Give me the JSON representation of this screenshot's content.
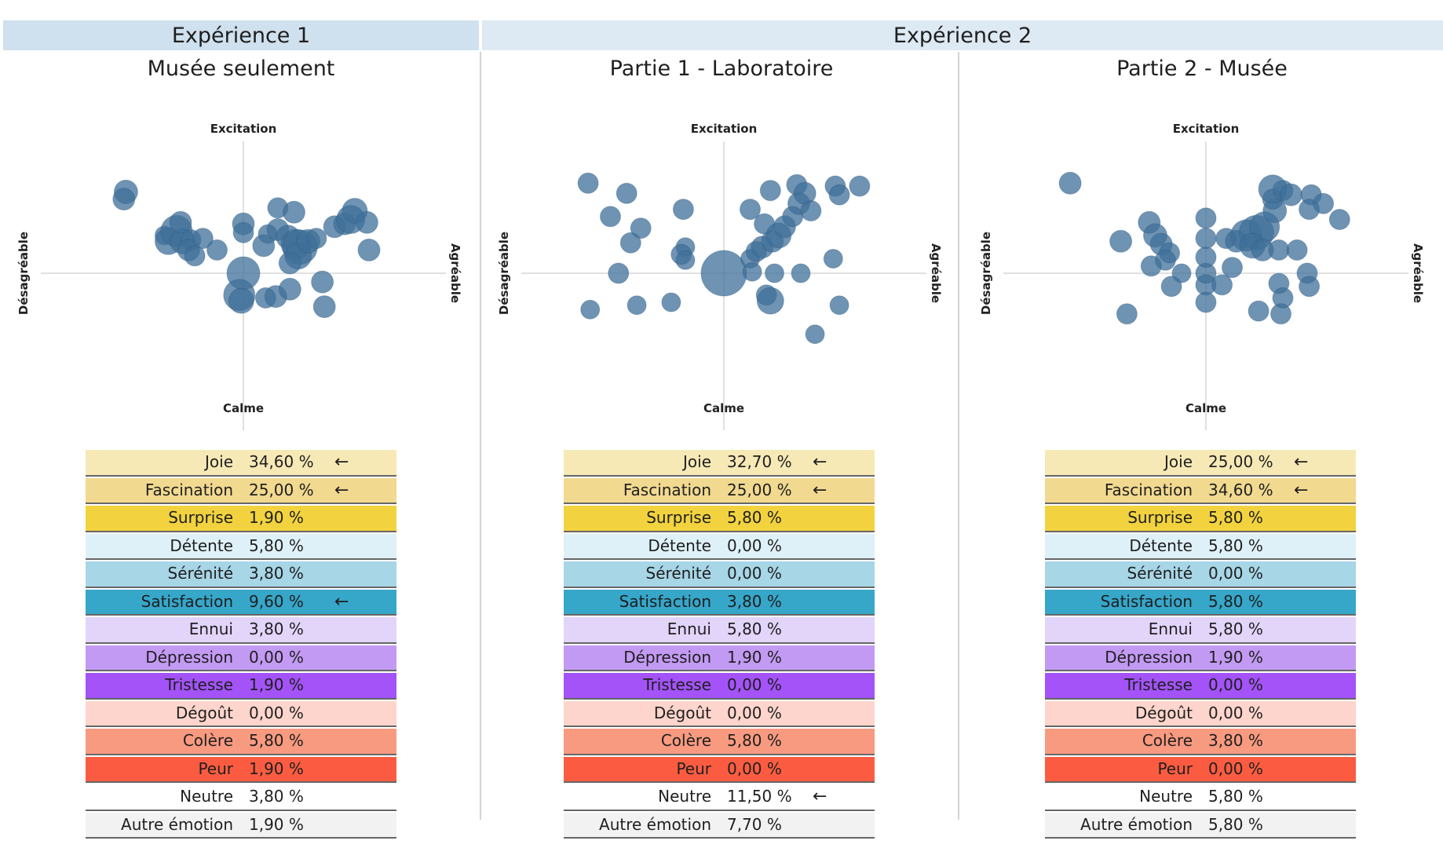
{
  "headers": {
    "exp1": "Expérience 1",
    "exp2": "Expérience 2"
  },
  "subtitles": [
    "Musée seulement",
    "Partie 1 - Laboratoire",
    "Partie 2 - Musée"
  ],
  "colors": {
    "bubble": "#3f6f98",
    "Joie": "#f7e9b6",
    "Fascination": "#f1d98f",
    "Surprise": "#f2d33f",
    "Détente": "#dff1f8",
    "Sérénité": "#a7d6e6",
    "Satisfaction": "#36a6c9",
    "Ennui": "#e3d4fa",
    "Dépression": "#c39af3",
    "Tristesse": "#a353f7",
    "Dégoût": "#fdd5cc",
    "Colère": "#f89a80",
    "Peur": "#fb5c41",
    "Neutre": "#ffffff",
    "Autre émotion": "#f2f2f2"
  },
  "chart_data": [
    {
      "type": "scatter",
      "title": "Musée seulement",
      "axes": {
        "top": "Excitation",
        "bottom": "Calme",
        "left": "Désagréable",
        "right": "Agréable"
      },
      "xlim": [
        -1,
        1
      ],
      "ylim": [
        -1,
        1
      ],
      "points": [
        {
          "x": -0.58,
          "y": 0.56,
          "r": 15
        },
        {
          "x": -0.59,
          "y": 0.51,
          "r": 14
        },
        {
          "x": -0.39,
          "y": 0.26,
          "r": 12
        },
        {
          "x": -0.37,
          "y": 0.22,
          "r": 17
        },
        {
          "x": -0.33,
          "y": 0.29,
          "r": 20
        },
        {
          "x": -0.3,
          "y": 0.22,
          "r": 16
        },
        {
          "x": -0.31,
          "y": 0.35,
          "r": 14
        },
        {
          "x": -0.26,
          "y": 0.23,
          "r": 13
        },
        {
          "x": -0.27,
          "y": 0.16,
          "r": 14
        },
        {
          "x": -0.24,
          "y": 0.12,
          "r": 13
        },
        {
          "x": -0.2,
          "y": 0.24,
          "r": 13
        },
        {
          "x": -0.13,
          "y": 0.16,
          "r": 13
        },
        {
          "x": 0.0,
          "y": 0.34,
          "r": 14
        },
        {
          "x": 0.0,
          "y": 0.28,
          "r": 13
        },
        {
          "x": 0.17,
          "y": 0.45,
          "r": 13
        },
        {
          "x": 0.25,
          "y": 0.42,
          "r": 14
        },
        {
          "x": 0.17,
          "y": 0.3,
          "r": 14
        },
        {
          "x": 0.12,
          "y": 0.27,
          "r": 12
        },
        {
          "x": 0.1,
          "y": 0.19,
          "r": 14
        },
        {
          "x": 0.22,
          "y": 0.25,
          "r": 15
        },
        {
          "x": 0.26,
          "y": 0.2,
          "r": 19
        },
        {
          "x": 0.28,
          "y": 0.18,
          "r": 22
        },
        {
          "x": 0.27,
          "y": 0.12,
          "r": 17
        },
        {
          "x": 0.32,
          "y": 0.22,
          "r": 15
        },
        {
          "x": 0.23,
          "y": 0.07,
          "r": 14
        },
        {
          "x": 0.36,
          "y": 0.24,
          "r": 13
        },
        {
          "x": 0.45,
          "y": 0.32,
          "r": 14
        },
        {
          "x": 0.5,
          "y": 0.34,
          "r": 14
        },
        {
          "x": 0.53,
          "y": 0.37,
          "r": 18
        },
        {
          "x": 0.55,
          "y": 0.43,
          "r": 16
        },
        {
          "x": 0.61,
          "y": 0.35,
          "r": 14
        },
        {
          "x": 0.62,
          "y": 0.16,
          "r": 14
        },
        {
          "x": 0.0,
          "y": 0.0,
          "r": 21
        },
        {
          "x": -0.02,
          "y": -0.15,
          "r": 20
        },
        {
          "x": -0.01,
          "y": -0.19,
          "r": 16
        },
        {
          "x": 0.11,
          "y": -0.17,
          "r": 13
        },
        {
          "x": 0.16,
          "y": -0.16,
          "r": 14
        },
        {
          "x": 0.23,
          "y": -0.11,
          "r": 14
        },
        {
          "x": 0.39,
          "y": -0.06,
          "r": 14
        },
        {
          "x": 0.4,
          "y": -0.23,
          "r": 14
        }
      ]
    },
    {
      "type": "scatter",
      "title": "Partie 1 - Laboratoire",
      "axes": {
        "top": "Excitation",
        "bottom": "Calme",
        "left": "Désagréable",
        "right": "Agréable"
      },
      "xlim": [
        -1,
        1
      ],
      "ylim": [
        -1,
        1
      ],
      "points": [
        {
          "x": -0.67,
          "y": 0.62,
          "r": 13
        },
        {
          "x": -0.48,
          "y": 0.55,
          "r": 13
        },
        {
          "x": -0.56,
          "y": 0.39,
          "r": 13
        },
        {
          "x": -0.41,
          "y": 0.31,
          "r": 13
        },
        {
          "x": -0.46,
          "y": 0.21,
          "r": 13
        },
        {
          "x": -0.2,
          "y": 0.44,
          "r": 13
        },
        {
          "x": -0.19,
          "y": 0.18,
          "r": 12
        },
        {
          "x": -0.21,
          "y": 0.13,
          "r": 13
        },
        {
          "x": -0.19,
          "y": 0.09,
          "r": 12
        },
        {
          "x": -0.52,
          "y": 0.0,
          "r": 13
        },
        {
          "x": 0.0,
          "y": 0.0,
          "r": 29
        },
        {
          "x": 0.13,
          "y": 0.1,
          "r": 12
        },
        {
          "x": 0.16,
          "y": 0.15,
          "r": 13
        },
        {
          "x": 0.19,
          "y": 0.18,
          "r": 14
        },
        {
          "x": 0.24,
          "y": 0.22,
          "r": 14
        },
        {
          "x": 0.27,
          "y": 0.26,
          "r": 16
        },
        {
          "x": 0.3,
          "y": 0.32,
          "r": 14
        },
        {
          "x": 0.2,
          "y": 0.34,
          "r": 13
        },
        {
          "x": 0.13,
          "y": 0.44,
          "r": 13
        },
        {
          "x": 0.23,
          "y": 0.57,
          "r": 13
        },
        {
          "x": 0.34,
          "y": 0.39,
          "r": 13
        },
        {
          "x": 0.37,
          "y": 0.48,
          "r": 14
        },
        {
          "x": 0.36,
          "y": 0.61,
          "r": 13
        },
        {
          "x": 0.4,
          "y": 0.55,
          "r": 14
        },
        {
          "x": 0.43,
          "y": 0.43,
          "r": 13
        },
        {
          "x": 0.55,
          "y": 0.6,
          "r": 13
        },
        {
          "x": 0.57,
          "y": 0.54,
          "r": 13
        },
        {
          "x": 0.67,
          "y": 0.6,
          "r": 13
        },
        {
          "x": 0.54,
          "y": 0.1,
          "r": 12
        },
        {
          "x": 0.38,
          "y": 0.0,
          "r": 12
        },
        {
          "x": 0.25,
          "y": 0.0,
          "r": 12
        },
        {
          "x": 0.14,
          "y": 0.01,
          "r": 12
        },
        {
          "x": 0.21,
          "y": -0.15,
          "r": 13
        },
        {
          "x": 0.23,
          "y": -0.19,
          "r": 17
        },
        {
          "x": 0.57,
          "y": -0.22,
          "r": 12
        },
        {
          "x": 0.45,
          "y": -0.42,
          "r": 12
        },
        {
          "x": -0.26,
          "y": -0.2,
          "r": 12
        },
        {
          "x": -0.43,
          "y": -0.22,
          "r": 12
        },
        {
          "x": -0.66,
          "y": -0.25,
          "r": 12
        }
      ]
    },
    {
      "type": "scatter",
      "title": "Partie 2 - Musée",
      "axes": {
        "top": "Excitation",
        "bottom": "Calme",
        "left": "Désagréable",
        "right": "Agréable"
      },
      "xlim": [
        -1,
        1
      ],
      "ylim": [
        -1,
        1
      ],
      "points": [
        {
          "x": -0.67,
          "y": 0.62,
          "r": 14
        },
        {
          "x": -0.28,
          "y": 0.35,
          "r": 14
        },
        {
          "x": -0.42,
          "y": 0.22,
          "r": 14
        },
        {
          "x": -0.25,
          "y": 0.26,
          "r": 15
        },
        {
          "x": -0.22,
          "y": 0.2,
          "r": 14
        },
        {
          "x": -0.18,
          "y": 0.14,
          "r": 13
        },
        {
          "x": -0.2,
          "y": 0.09,
          "r": 13
        },
        {
          "x": -0.27,
          "y": 0.05,
          "r": 13
        },
        {
          "x": -0.12,
          "y": 0.0,
          "r": 12
        },
        {
          "x": -0.17,
          "y": -0.09,
          "r": 13
        },
        {
          "x": 0.0,
          "y": 0.0,
          "r": 13
        },
        {
          "x": 0.0,
          "y": 0.11,
          "r": 13
        },
        {
          "x": 0.0,
          "y": 0.24,
          "r": 13
        },
        {
          "x": 0.0,
          "y": 0.38,
          "r": 13
        },
        {
          "x": 0.0,
          "y": -0.08,
          "r": 13
        },
        {
          "x": 0.0,
          "y": -0.2,
          "r": 13
        },
        {
          "x": 0.08,
          "y": -0.08,
          "r": 13
        },
        {
          "x": 0.13,
          "y": 0.04,
          "r": 13
        },
        {
          "x": 0.1,
          "y": 0.24,
          "r": 13
        },
        {
          "x": 0.15,
          "y": 0.22,
          "r": 14
        },
        {
          "x": 0.2,
          "y": 0.26,
          "r": 20
        },
        {
          "x": 0.25,
          "y": 0.28,
          "r": 22
        },
        {
          "x": 0.29,
          "y": 0.32,
          "r": 19
        },
        {
          "x": 0.23,
          "y": 0.19,
          "r": 16
        },
        {
          "x": 0.28,
          "y": 0.16,
          "r": 14
        },
        {
          "x": 0.34,
          "y": 0.43,
          "r": 15
        },
        {
          "x": 0.33,
          "y": 0.51,
          "r": 13
        },
        {
          "x": 0.38,
          "y": 0.57,
          "r": 13
        },
        {
          "x": 0.33,
          "y": 0.58,
          "r": 18
        },
        {
          "x": 0.42,
          "y": 0.54,
          "r": 14
        },
        {
          "x": 0.52,
          "y": 0.54,
          "r": 13
        },
        {
          "x": 0.51,
          "y": 0.44,
          "r": 13
        },
        {
          "x": 0.58,
          "y": 0.48,
          "r": 13
        },
        {
          "x": 0.66,
          "y": 0.37,
          "r": 13
        },
        {
          "x": 0.36,
          "y": 0.16,
          "r": 13
        },
        {
          "x": 0.45,
          "y": 0.16,
          "r": 13
        },
        {
          "x": 0.5,
          "y": 0.0,
          "r": 13
        },
        {
          "x": 0.36,
          "y": -0.07,
          "r": 13
        },
        {
          "x": 0.38,
          "y": -0.17,
          "r": 13
        },
        {
          "x": 0.51,
          "y": -0.09,
          "r": 13
        },
        {
          "x": -0.39,
          "y": -0.28,
          "r": 13
        },
        {
          "x": 0.26,
          "y": -0.26,
          "r": 13
        },
        {
          "x": 0.37,
          "y": -0.28,
          "r": 13
        }
      ]
    }
  ],
  "tables": [
    {
      "rows": [
        {
          "name": "Joie",
          "value": "34,60 %",
          "arrow": "←"
        },
        {
          "name": "Fascination",
          "value": "25,00 %",
          "arrow": "←"
        },
        {
          "name": "Surprise",
          "value": "1,90 %",
          "arrow": ""
        },
        {
          "name": "Détente",
          "value": "5,80 %",
          "arrow": ""
        },
        {
          "name": "Sérénité",
          "value": "3,80 %",
          "arrow": ""
        },
        {
          "name": "Satisfaction",
          "value": "9,60 %",
          "arrow": "←"
        },
        {
          "name": "Ennui",
          "value": "3,80 %",
          "arrow": ""
        },
        {
          "name": "Dépression",
          "value": "0,00 %",
          "arrow": ""
        },
        {
          "name": "Tristesse",
          "value": "1,90 %",
          "arrow": ""
        },
        {
          "name": "Dégoût",
          "value": "0,00 %",
          "arrow": ""
        },
        {
          "name": "Colère",
          "value": "5,80 %",
          "arrow": ""
        },
        {
          "name": "Peur",
          "value": "1,90 %",
          "arrow": ""
        },
        {
          "name": "Neutre",
          "value": "3,80 %",
          "arrow": ""
        },
        {
          "name": "Autre émotion",
          "value": "1,90 %",
          "arrow": ""
        }
      ]
    },
    {
      "rows": [
        {
          "name": "Joie",
          "value": "32,70 %",
          "arrow": "←"
        },
        {
          "name": "Fascination",
          "value": "25,00 %",
          "arrow": "←"
        },
        {
          "name": "Surprise",
          "value": "5,80 %",
          "arrow": ""
        },
        {
          "name": "Détente",
          "value": "0,00 %",
          "arrow": ""
        },
        {
          "name": "Sérénité",
          "value": "0,00 %",
          "arrow": ""
        },
        {
          "name": "Satisfaction",
          "value": "3,80 %",
          "arrow": ""
        },
        {
          "name": "Ennui",
          "value": "5,80 %",
          "arrow": ""
        },
        {
          "name": "Dépression",
          "value": "1,90 %",
          "arrow": ""
        },
        {
          "name": "Tristesse",
          "value": "0,00 %",
          "arrow": ""
        },
        {
          "name": "Dégoût",
          "value": "0,00 %",
          "arrow": ""
        },
        {
          "name": "Colère",
          "value": "5,80 %",
          "arrow": ""
        },
        {
          "name": "Peur",
          "value": "0,00 %",
          "arrow": ""
        },
        {
          "name": "Neutre",
          "value": "11,50 %",
          "arrow": "←"
        },
        {
          "name": "Autre émotion",
          "value": "7,70 %",
          "arrow": ""
        }
      ]
    },
    {
      "rows": [
        {
          "name": "Joie",
          "value": "25,00 %",
          "arrow": "←"
        },
        {
          "name": "Fascination",
          "value": "34,60 %",
          "arrow": "←"
        },
        {
          "name": "Surprise",
          "value": "5,80 %",
          "arrow": ""
        },
        {
          "name": "Détente",
          "value": "5,80 %",
          "arrow": ""
        },
        {
          "name": "Sérénité",
          "value": "0,00 %",
          "arrow": ""
        },
        {
          "name": "Satisfaction",
          "value": "5,80 %",
          "arrow": ""
        },
        {
          "name": "Ennui",
          "value": "5,80 %",
          "arrow": ""
        },
        {
          "name": "Dépression",
          "value": "1,90 %",
          "arrow": ""
        },
        {
          "name": "Tristesse",
          "value": "0,00 %",
          "arrow": ""
        },
        {
          "name": "Dégoût",
          "value": "0,00 %",
          "arrow": ""
        },
        {
          "name": "Colère",
          "value": "3,80 %",
          "arrow": ""
        },
        {
          "name": "Peur",
          "value": "0,00 %",
          "arrow": ""
        },
        {
          "name": "Neutre",
          "value": "5,80 %",
          "arrow": ""
        },
        {
          "name": "Autre émotion",
          "value": "5,80 %",
          "arrow": ""
        }
      ]
    }
  ]
}
